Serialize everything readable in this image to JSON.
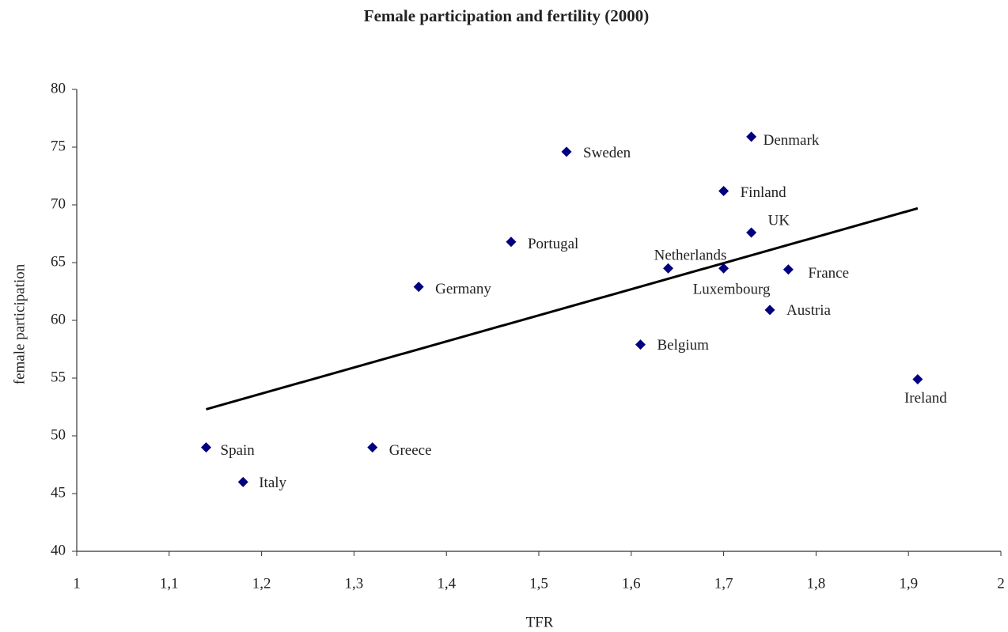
{
  "chart_data": {
    "type": "scatter",
    "title": "Female participation and fertility (2000)",
    "xlabel": "TFR",
    "ylabel": "female participation",
    "points": {
      "color": "#000080",
      "labels": [
        "Spain",
        "Italy",
        "Greece",
        "Germany",
        "Portugal",
        "Sweden",
        "Belgium",
        "Netherlands",
        "Luxembourg",
        "Finland",
        "Denmark",
        "UK",
        "Austria",
        "France",
        "Ireland"
      ],
      "x": [
        1.14,
        1.18,
        1.32,
        1.37,
        1.47,
        1.53,
        1.61,
        1.64,
        1.7,
        1.7,
        1.73,
        1.73,
        1.75,
        1.77,
        1.91
      ],
      "y": [
        49.0,
        46.0,
        49.0,
        62.9,
        66.8,
        74.6,
        57.9,
        64.5,
        64.5,
        71.2,
        75.9,
        67.6,
        60.9,
        64.4,
        54.9
      ]
    },
    "trendline": {
      "color": "#000000",
      "x": [
        1.14,
        1.91
      ],
      "y": [
        52.3,
        69.7
      ]
    },
    "xlim": [
      1,
      2
    ],
    "xticks": [
      1,
      {
        "value": 1.1,
        "label": "1,1"
      },
      {
        "value": 1.2,
        "label": "1,2"
      },
      {
        "value": 1.3,
        "label": "1,3"
      },
      {
        "value": 1.4,
        "label": "1,4"
      },
      {
        "value": 1.5,
        "label": "1,5"
      },
      {
        "value": 1.6,
        "label": "1,6"
      },
      {
        "value": 1.7,
        "label": "1,7"
      },
      {
        "value": 1.8,
        "label": "1,8"
      },
      {
        "value": 1.9,
        "label": "1,9"
      },
      2
    ],
    "ylim": [
      40,
      80
    ],
    "yticks": [
      40,
      45,
      50,
      55,
      60,
      65,
      70,
      75,
      80
    ],
    "grid": false
  }
}
